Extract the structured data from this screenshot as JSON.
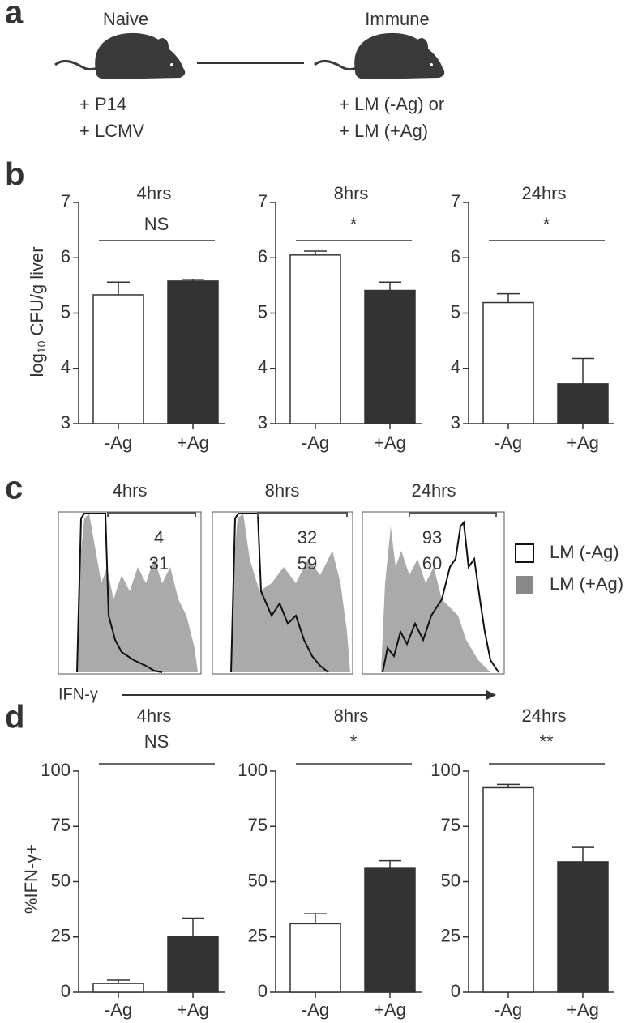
{
  "panel_labels": [
    "a",
    "b",
    "c",
    "d"
  ],
  "diagram": {
    "left_title": "Naive",
    "right_title": "Immune",
    "left_notes": [
      "+ P14",
      "+ LCMV"
    ],
    "right_notes": [
      "+ LM (-Ag) or",
      "+ LM (+Ag)"
    ]
  },
  "chart_data": [
    {
      "type": "bar",
      "title": "4hrs",
      "ylabel": {
        "base": "log",
        "subscript": "10",
        "rest": " CFU/g liver"
      },
      "categories": [
        "-Ag",
        "+Ag"
      ],
      "values": [
        5.33,
        5.58
      ],
      "errors": [
        0.23,
        0.03
      ],
      "colors": [
        "#ffffff",
        "#333333"
      ],
      "annotation": "NS",
      "ylim": [
        3,
        7
      ],
      "yticks": [
        3,
        4,
        5,
        6,
        7
      ]
    },
    {
      "type": "bar",
      "title": "8hrs",
      "categories": [
        "-Ag",
        "+Ag"
      ],
      "values": [
        6.05,
        5.41
      ],
      "errors": [
        0.07,
        0.15
      ],
      "colors": [
        "#ffffff",
        "#333333"
      ],
      "annotation": "*",
      "ylim": [
        3,
        7
      ],
      "yticks": [
        3,
        4,
        5,
        6,
        7
      ]
    },
    {
      "type": "bar",
      "title": "24hrs",
      "categories": [
        "-Ag",
        "+Ag"
      ],
      "values": [
        5.19,
        3.72
      ],
      "errors": [
        0.16,
        0.46
      ],
      "colors": [
        "#ffffff",
        "#333333"
      ],
      "annotation": "*",
      "ylim": [
        3,
        7
      ],
      "yticks": [
        3,
        4,
        5,
        6,
        7
      ]
    },
    {
      "type": "bar",
      "title": "4hrs",
      "ylabel": {
        "base": "%IFN-γ+"
      },
      "categories": [
        "-Ag",
        "+Ag"
      ],
      "values": [
        4,
        25
      ],
      "errors": [
        1.5,
        8.5
      ],
      "colors": [
        "#ffffff",
        "#333333"
      ],
      "annotation": "NS",
      "ylim": [
        0,
        100
      ],
      "yticks": [
        0,
        25,
        50,
        75,
        100
      ]
    },
    {
      "type": "bar",
      "title": "8hrs",
      "categories": [
        "-Ag",
        "+Ag"
      ],
      "values": [
        31,
        56
      ],
      "errors": [
        4.5,
        3.5
      ],
      "colors": [
        "#ffffff",
        "#333333"
      ],
      "annotation": "*",
      "ylim": [
        0,
        100
      ],
      "yticks": [
        0,
        25,
        50,
        75,
        100
      ]
    },
    {
      "type": "bar",
      "title": "24hrs",
      "categories": [
        "-Ag",
        "+Ag"
      ],
      "values": [
        92.5,
        59
      ],
      "errors": [
        1.5,
        6.5
      ],
      "colors": [
        "#ffffff",
        "#333333"
      ],
      "annotation": "**",
      "ylim": [
        0,
        100
      ],
      "yticks": [
        0,
        25,
        50,
        75,
        100
      ]
    }
  ],
  "flow_panels": {
    "titles": [
      "4hrs",
      "8hrs",
      "24hrs"
    ],
    "gate_values": [
      [
        4,
        31
      ],
      [
        32,
        59
      ],
      [
        93,
        60
      ]
    ],
    "legend": [
      "LM (-Ag)",
      "LM (+Ag)"
    ],
    "xlabel": "IFN-γ"
  }
}
